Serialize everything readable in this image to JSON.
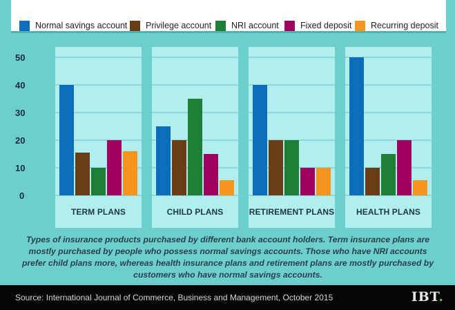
{
  "colors": {
    "background": "#6ccfcd",
    "panel": "#b0eef0",
    "gridline": "#7fc9c9",
    "footer": "#050505"
  },
  "legend": [
    {
      "label": "Normal savings account",
      "color": "#0a6ebd"
    },
    {
      "label": "Privilege account",
      "color": "#6b3d14"
    },
    {
      "label": "NRI account",
      "color": "#1d7f35"
    },
    {
      "label": "Fixed deposit",
      "color": "#a1005f"
    },
    {
      "label": "Recurring deposit",
      "color": "#f7941d"
    }
  ],
  "chart_data": {
    "type": "bar",
    "title": "",
    "xlabel": "",
    "ylabel": "",
    "ylim": [
      0,
      50
    ],
    "yticks": [
      0,
      10,
      20,
      30,
      40,
      50
    ],
    "ytick_labels": [
      "0",
      "10",
      "20",
      "30",
      "40",
      "50"
    ],
    "grid": true,
    "legend_position": "top",
    "categories": [
      "TERM PLANS",
      "CHILD PLANS",
      "RETIREMENT PLANS",
      "HEALTH PLANS"
    ],
    "series": [
      {
        "name": "Normal savings account",
        "values": [
          40,
          25,
          40,
          50
        ]
      },
      {
        "name": "Privilege account",
        "values": [
          15.5,
          20,
          20,
          10
        ]
      },
      {
        "name": "NRI account",
        "values": [
          10,
          35,
          20,
          15
        ]
      },
      {
        "name": "Fixed deposit",
        "values": [
          20,
          15,
          10,
          20
        ]
      },
      {
        "name": "Recurring deposit",
        "values": [
          16,
          5.5,
          10,
          5.5
        ]
      }
    ]
  },
  "caption": "Types of insurance products purchased by different bank account holders. Term insurance plans are mostly purchased by people who possess normal savings accounts. Those who have NRI accounts prefer child plans more, whereas health insurance plans and retirement plans are mostly purchased by customers who have normal savings accounts.",
  "footer": {
    "source": "Source: International Journal of Commerce, Business and Management, October 2015",
    "logo": "IBT",
    "logo_dot": "."
  }
}
